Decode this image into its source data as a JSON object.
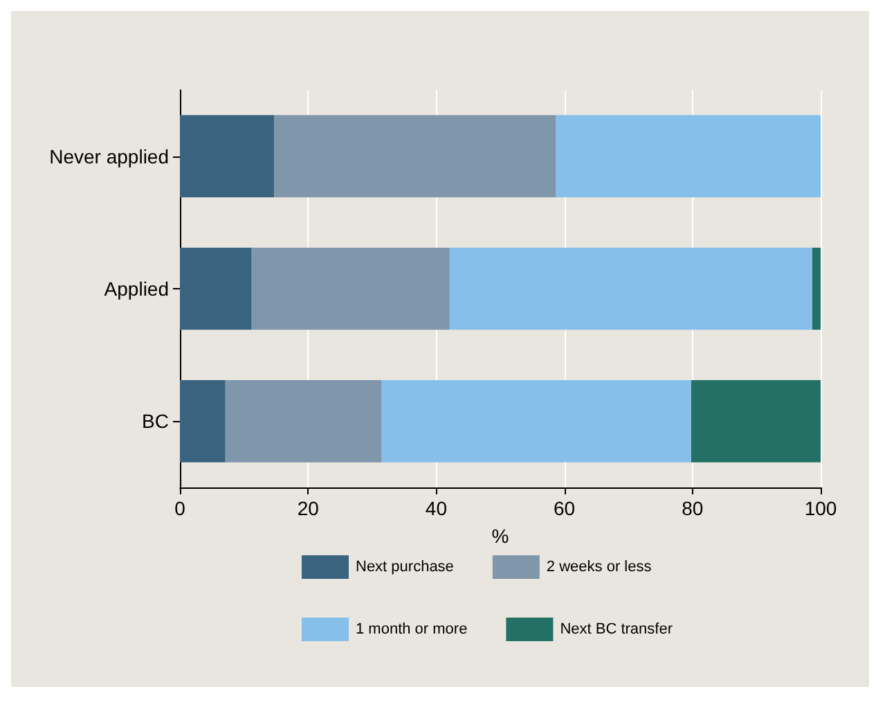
{
  "chart_data": {
    "type": "bar",
    "orientation": "horizontal",
    "stacked": true,
    "xlabel": "%",
    "categories": [
      "Never applied",
      "Applied",
      "BC"
    ],
    "series": [
      {
        "name": "Next purchase",
        "color": "#3a6380",
        "values": [
          14.7,
          11.2,
          7.1
        ]
      },
      {
        "name": "2 weeks or less",
        "color": "#7f96ab",
        "values": [
          44.0,
          30.9,
          24.4
        ]
      },
      {
        "name": "1 month or more",
        "color": "#85bfea",
        "values": [
          41.3,
          56.6,
          48.3
        ]
      },
      {
        "name": "Next BC transfer",
        "color": "#237065",
        "values": [
          0,
          1.3,
          20.2
        ]
      }
    ],
    "xlim": [
      0,
      100
    ],
    "xticks": [
      0,
      20,
      40,
      60,
      80,
      100
    ],
    "grid": "x",
    "legend": "bottom"
  }
}
